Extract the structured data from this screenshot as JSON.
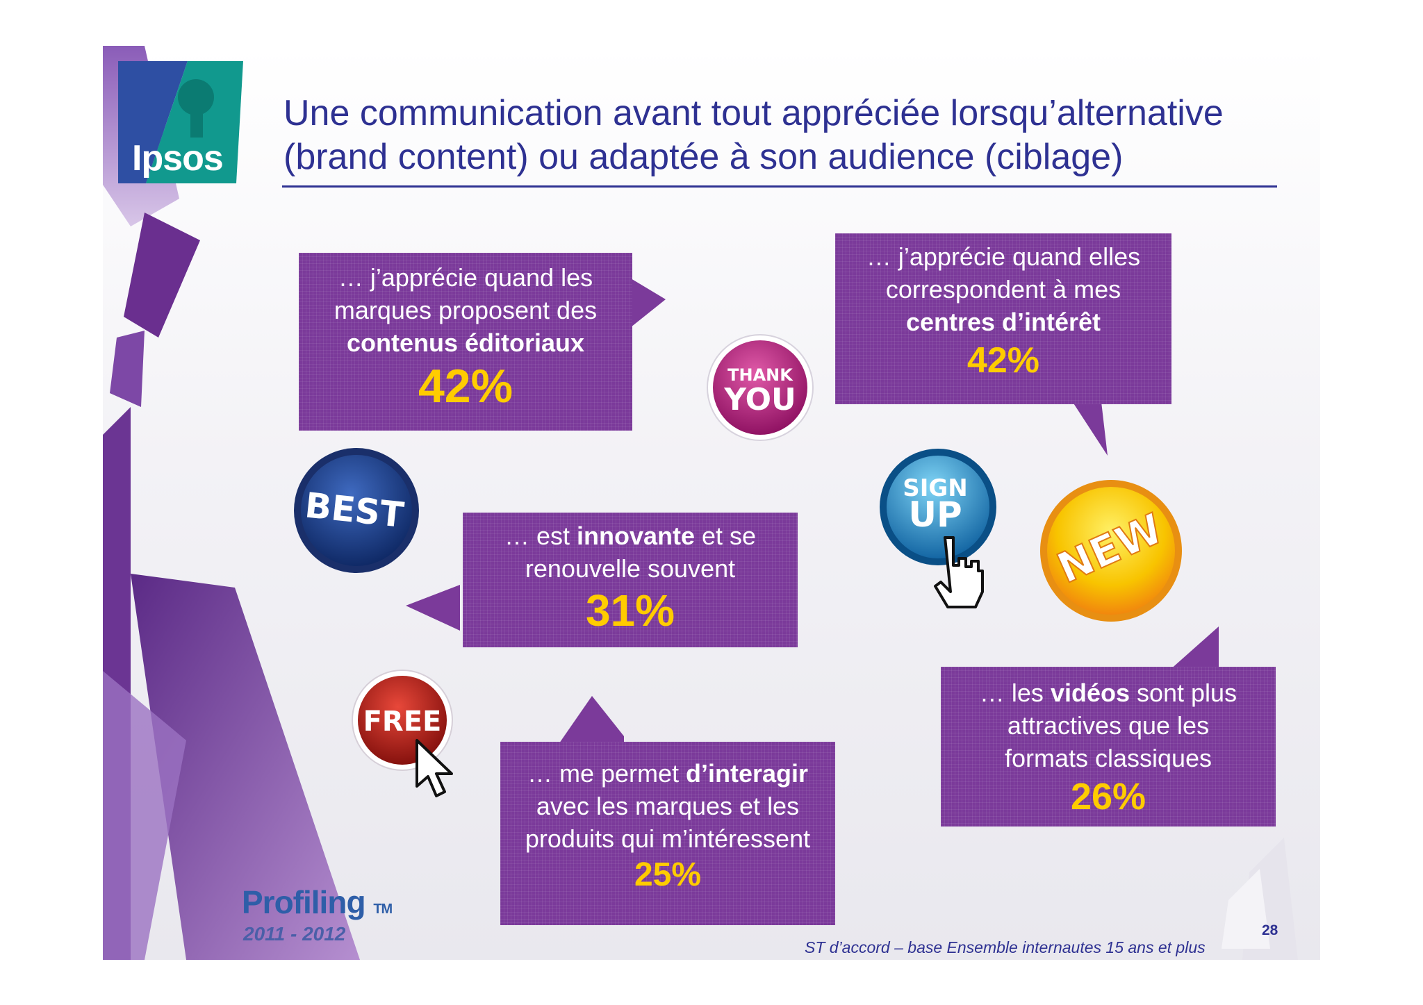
{
  "logo": {
    "name": "Ipsos"
  },
  "title": {
    "line1": "Une communication avant tout appréciée lorsqu’alternative",
    "line2": "(brand content) ou adaptée à son audience (ciblage)"
  },
  "bubbles": {
    "editorial": {
      "t1": "… j’apprécie quand les",
      "t2": "marques proposent des",
      "t3": "contenus éditoriaux",
      "value": "42%"
    },
    "interest": {
      "t1": "… j’apprécie quand elles",
      "t2": "correspondent à mes",
      "t3": "centres d’intérêt",
      "value": "42%"
    },
    "innovative": {
      "t1a": "… est ",
      "t1b": "innovante",
      "t1c": " et se",
      "t2": "renouvelle souvent",
      "value": "31%"
    },
    "interact": {
      "t1a": "… me permet ",
      "t1b": "d’interagir",
      "t2": "avec les marques et les",
      "t3": "produits qui m’intéressent",
      "value": "25%"
    },
    "videos": {
      "t1a": "… les ",
      "t1b": "vidéos",
      "t1c": " sont plus",
      "t2": "attractives que les",
      "t3": "formats classiques",
      "value": "26%"
    }
  },
  "badges": {
    "thank_you": {
      "l1": "THANK",
      "l2": "YOU"
    },
    "best": {
      "l1": "BEST"
    },
    "sign_up": {
      "l1": "SIGN",
      "l2": "UP"
    },
    "new": {
      "l1": "NEW"
    },
    "free": {
      "l1": "FREE"
    }
  },
  "footer": {
    "profiling": "Profiling",
    "tm": "TM",
    "years": "2011 - 2012",
    "note": "ST d’accord – base Ensemble internautes 15 ans et plus",
    "page": "28"
  },
  "colors": {
    "bubble": "#7b3a9a",
    "percent": "#ffcc00",
    "title": "#2e3192"
  }
}
